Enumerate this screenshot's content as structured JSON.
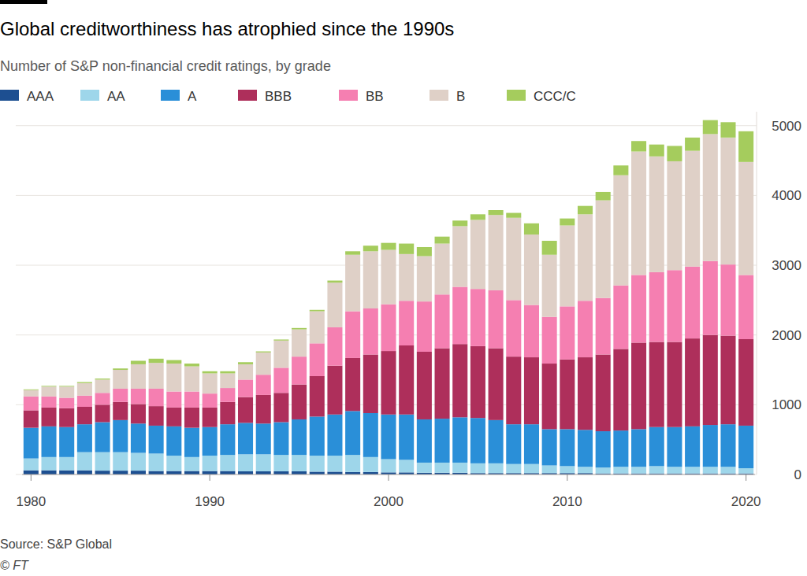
{
  "chart_data": {
    "type": "bar",
    "title": "Global creditworthiness has atrophied since the 1990s",
    "subtitle": "Number of S&P non-financial credit ratings, by grade",
    "source": "Source: S&P Global",
    "credit": "© FT",
    "stacked": true,
    "grid": true,
    "legend": "top",
    "x": [
      1980,
      1981,
      1982,
      1983,
      1984,
      1985,
      1986,
      1987,
      1988,
      1989,
      1990,
      1991,
      1992,
      1993,
      1994,
      1995,
      1996,
      1997,
      1998,
      1999,
      2000,
      2001,
      2002,
      2003,
      2004,
      2005,
      2006,
      2007,
      2008,
      2009,
      2010,
      2011,
      2012,
      2013,
      2014,
      2015,
      2016,
      2017,
      2018,
      2019,
      2020
    ],
    "xlim": [
      1979.5,
      2020.5
    ],
    "xticks": [
      1980,
      1990,
      2000,
      2010,
      2020
    ],
    "ylim": [
      0,
      5200
    ],
    "yticks": [
      0,
      1000,
      2000,
      3000,
      4000,
      5000
    ],
    "series": [
      {
        "name": "AAA",
        "color": "#1d4f91",
        "values": [
          60,
          60,
          60,
          60,
          55,
          55,
          55,
          50,
          50,
          50,
          50,
          50,
          45,
          45,
          45,
          45,
          40,
          40,
          35,
          35,
          30,
          30,
          25,
          25,
          25,
          20,
          20,
          20,
          20,
          20,
          20,
          20,
          15,
          15,
          15,
          15,
          15,
          15,
          15,
          15,
          15
        ]
      },
      {
        "name": "AA",
        "color": "#9ed6ea",
        "values": [
          170,
          190,
          190,
          260,
          265,
          265,
          255,
          250,
          220,
          200,
          220,
          230,
          245,
          245,
          235,
          235,
          230,
          230,
          245,
          215,
          190,
          180,
          145,
          145,
          145,
          140,
          140,
          130,
          130,
          110,
          100,
          90,
          85,
          95,
          95,
          105,
          95,
          95,
          95,
          95,
          75
        ]
      },
      {
        "name": "A",
        "color": "#2a8fd8",
        "values": [
          440,
          440,
          430,
          400,
          430,
          460,
          420,
          400,
          420,
          420,
          410,
          440,
          450,
          440,
          470,
          510,
          560,
          590,
          630,
          630,
          640,
          650,
          620,
          630,
          650,
          650,
          620,
          570,
          570,
          520,
          530,
          530,
          520,
          520,
          540,
          560,
          570,
          580,
          600,
          610,
          610
        ]
      },
      {
        "name": "BBB",
        "color": "#ae2f5b",
        "values": [
          250,
          270,
          270,
          250,
          250,
          260,
          280,
          280,
          270,
          290,
          280,
          320,
          370,
          410,
          420,
          500,
          580,
          700,
          760,
          840,
          910,
          990,
          970,
          1010,
          1050,
          1030,
          1030,
          970,
          960,
          940,
          1000,
          1040,
          1100,
          1170,
          1240,
          1220,
          1220,
          1260,
          1290,
          1270,
          1240
        ]
      },
      {
        "name": "BB",
        "color": "#f57fb1",
        "values": [
          200,
          160,
          150,
          160,
          170,
          190,
          220,
          250,
          230,
          230,
          200,
          200,
          250,
          290,
          360,
          400,
          470,
          550,
          670,
          660,
          670,
          640,
          720,
          770,
          820,
          820,
          830,
          810,
          750,
          670,
          760,
          810,
          810,
          910,
          970,
          1000,
          1030,
          1030,
          1060,
          1020,
          920
        ]
      },
      {
        "name": "B",
        "color": "#dfd0c7",
        "values": [
          90,
          140,
          160,
          180,
          190,
          270,
          350,
          370,
          400,
          360,
          290,
          210,
          220,
          320,
          390,
          390,
          460,
          640,
          810,
          820,
          780,
          670,
          650,
          730,
          870,
          990,
          1080,
          1180,
          1010,
          890,
          1160,
          1240,
          1400,
          1580,
          1770,
          1660,
          1560,
          1660,
          1820,
          1820,
          1620
        ]
      },
      {
        "name": "CCC/C",
        "color": "#a5cc5d",
        "values": [
          10,
          10,
          10,
          15,
          15,
          20,
          50,
          60,
          50,
          40,
          30,
          30,
          30,
          15,
          15,
          20,
          20,
          30,
          50,
          80,
          100,
          150,
          130,
          100,
          80,
          80,
          70,
          70,
          160,
          200,
          100,
          120,
          120,
          140,
          150,
          170,
          220,
          190,
          200,
          220,
          440
        ]
      }
    ]
  }
}
